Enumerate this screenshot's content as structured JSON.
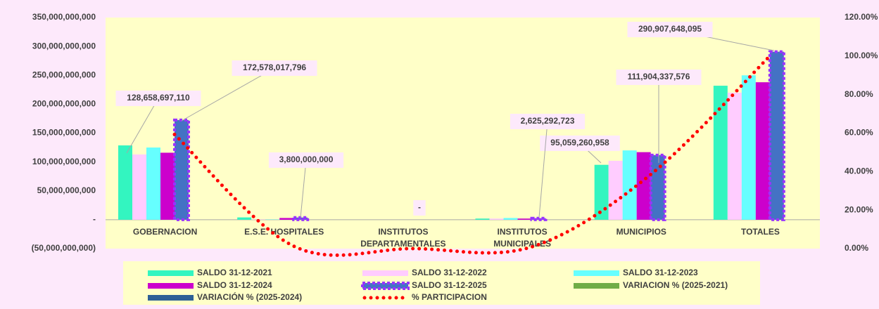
{
  "chart_data": {
    "type": "bar",
    "categories": [
      "GOBERNACION",
      "E.S.E. HOSPITALES",
      "INSTITUTOS DEPARTAMENTALES",
      "INSTITUTOS MUNICIPALES",
      "MUNICIPIOS",
      "TOTALES"
    ],
    "series": [
      {
        "name": "SALDO 31-12-2021",
        "color": "#33f5c0",
        "values": [
          128658697110,
          4000000000,
          0,
          2000000000,
          95059260958,
          232000000000
        ],
        "value_labels": [
          "128,658,697,110",
          null,
          null,
          null,
          "95,059,260,958",
          null
        ]
      },
      {
        "name": "SALDO 31-12-2022",
        "color": "#ffccff",
        "values": [
          113000000000,
          500000000,
          0,
          2000000000,
          102000000000,
          220000000000
        ]
      },
      {
        "name": "SALDO 31-12-2023",
        "color": "#66ffff",
        "values": [
          125000000000,
          500000000,
          0,
          3000000000,
          120000000000,
          250000000000
        ]
      },
      {
        "name": "SALDO 31-12-2024",
        "color": "#cc00cc",
        "values": [
          116000000000,
          3000000000,
          0,
          2000000000,
          117000000000,
          238000000000
        ]
      },
      {
        "name": "SALDO 31-12-2025",
        "color": "#4472c4",
        "border": "#9933ff",
        "values": [
          172578017796,
          3800000000,
          0,
          2625292723,
          111904337576,
          290907648095
        ],
        "value_labels": [
          "172,578,017,796",
          "3,800,000,000",
          "-",
          "2,625,292,723",
          "111,904,337,576",
          "290,907,648,095"
        ]
      },
      {
        "name": "VARIACION % (2025-2021)",
        "color": "#70ad47",
        "axis": "y2",
        "values": [
          null,
          null,
          null,
          null,
          null,
          null
        ]
      },
      {
        "name": "VARIACIÓN % (2025-2024)",
        "color": "#2e6096",
        "axis": "y2",
        "values": [
          null,
          null,
          null,
          null,
          null,
          null
        ]
      },
      {
        "name": "% PARTICIPACION",
        "color": "#ff0000",
        "type": "line",
        "axis": "y2",
        "values": [
          59.3,
          1.3,
          0,
          0.9,
          38.5,
          100
        ]
      }
    ],
    "ylim": [
      -50000000000,
      350000000000
    ],
    "yticks": [
      {
        "value": -50000000000,
        "label": "(50,000,000,000)"
      },
      {
        "value": 0,
        "label": "-"
      },
      {
        "value": 50000000000,
        "label": "50,000,000,000"
      },
      {
        "value": 100000000000,
        "label": "100,000,000,000"
      },
      {
        "value": 150000000000,
        "label": "150,000,000,000"
      },
      {
        "value": 200000000000,
        "label": "200,000,000,000"
      },
      {
        "value": 250000000000,
        "label": "250,000,000,000"
      },
      {
        "value": 300000000000,
        "label": "300,000,000,000"
      },
      {
        "value": 350000000000,
        "label": "350,000,000,000"
      }
    ],
    "y2lim": [
      0,
      120
    ],
    "y2ticks": [
      {
        "value": 0,
        "label": "0.00%"
      },
      {
        "value": 20,
        "label": "20.00%"
      },
      {
        "value": 40,
        "label": "40.00%"
      },
      {
        "value": 60,
        "label": "60.00%"
      },
      {
        "value": 80,
        "label": "80.00%"
      },
      {
        "value": 100,
        "label": "100.00%"
      },
      {
        "value": 120,
        "label": "120.00%"
      }
    ],
    "grid": false,
    "legend": "bottom"
  }
}
